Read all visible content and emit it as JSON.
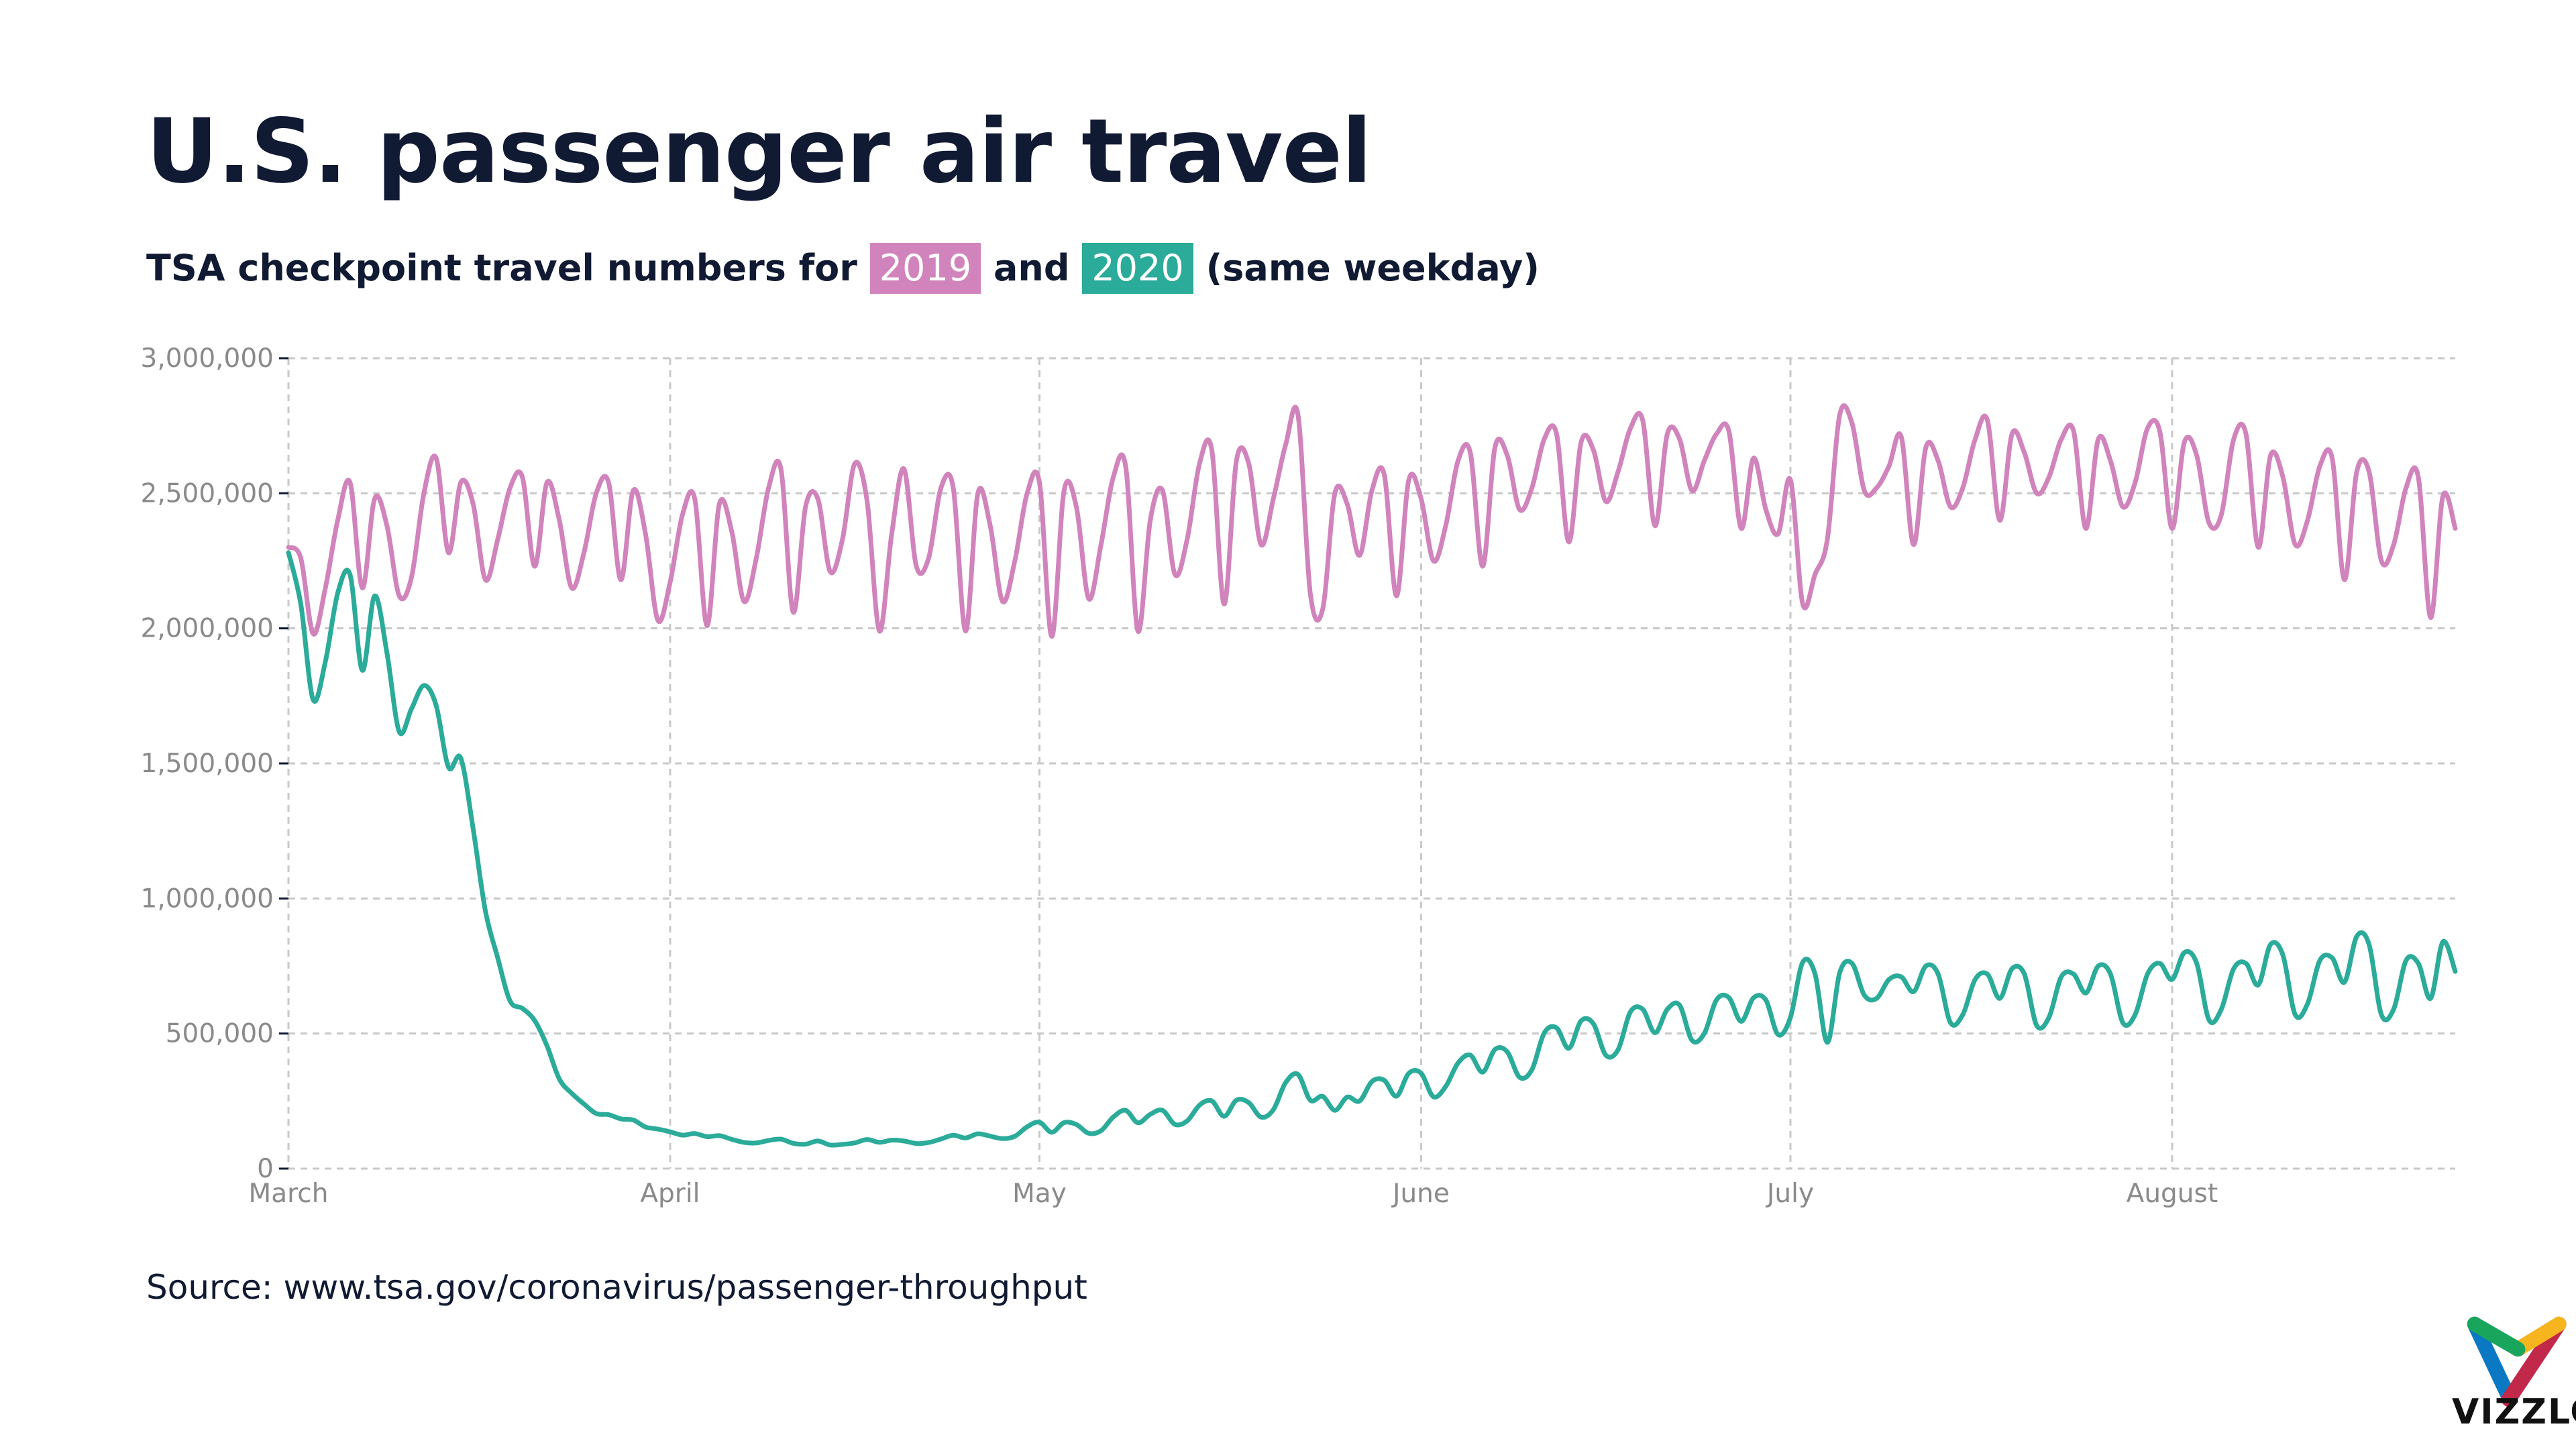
{
  "title": "U.S. passenger air travel",
  "subtitle": {
    "prefix": "TSA checkpoint travel numbers for",
    "tag_2019": "2019",
    "middle": "and",
    "tag_2020": "2020",
    "suffix": "(same weekday)"
  },
  "source": "Source: www.tsa.gov/coronavirus/passenger-throughput",
  "logo": {
    "text": "VIZZLO",
    "colors": [
      "#1aa55c",
      "#f6b51e",
      "#0a78c2",
      "#c2284a"
    ]
  },
  "colors": {
    "series_2019": "#d183bc",
    "series_2020": "#2bab99",
    "grid": "#c8c8c8",
    "title": "#111a33"
  },
  "chart_data": {
    "type": "line",
    "x_start": "2020-03-01",
    "x_end": "2020-08-24",
    "x_ticks": [
      "March",
      "April",
      "May",
      "June",
      "July",
      "August"
    ],
    "x_tick_dates": [
      "2020-03-01",
      "2020-04-01",
      "2020-05-01",
      "2020-06-01",
      "2020-07-01",
      "2020-08-01"
    ],
    "y_ticks": [
      "0",
      "500,000",
      "1,000,000",
      "1,500,000",
      "2,000,000",
      "2,500,000",
      "3,000,000"
    ],
    "ylim": [
      0,
      3000000
    ],
    "grid": true,
    "xlabel": "",
    "ylabel": "",
    "series": [
      {
        "name": "2019",
        "values": [
          2300000,
          2260000,
          1980000,
          2150000,
          2400000,
          2540000,
          2150000,
          2480000,
          2380000,
          2120000,
          2190000,
          2500000,
          2630000,
          2280000,
          2540000,
          2460000,
          2180000,
          2330000,
          2520000,
          2560000,
          2230000,
          2540000,
          2400000,
          2150000,
          2280000,
          2500000,
          2540000,
          2180000,
          2510000,
          2350000,
          2030000,
          2170000,
          2420000,
          2480000,
          2010000,
          2460000,
          2360000,
          2100000,
          2260000,
          2520000,
          2590000,
          2060000,
          2450000,
          2480000,
          2210000,
          2330000,
          2610000,
          2470000,
          1990000,
          2350000,
          2590000,
          2230000,
          2260000,
          2520000,
          2520000,
          1990000,
          2500000,
          2380000,
          2100000,
          2250000,
          2500000,
          2540000,
          1970000,
          2510000,
          2450000,
          2110000,
          2310000,
          2560000,
          2600000,
          1990000,
          2400000,
          2510000,
          2200000,
          2330000,
          2610000,
          2660000,
          2090000,
          2620000,
          2610000,
          2310000,
          2480000,
          2680000,
          2790000,
          2130000,
          2070000,
          2500000,
          2460000,
          2270000,
          2510000,
          2570000,
          2120000,
          2550000,
          2480000,
          2250000,
          2380000,
          2620000,
          2650000,
          2230000,
          2670000,
          2640000,
          2440000,
          2520000,
          2700000,
          2720000,
          2320000,
          2690000,
          2660000,
          2470000,
          2580000,
          2740000,
          2770000,
          2380000,
          2720000,
          2700000,
          2510000,
          2620000,
          2720000,
          2730000,
          2370000,
          2630000,
          2440000,
          2350000,
          2550000,
          2090000,
          2200000,
          2330000,
          2790000,
          2760000,
          2510000,
          2520000,
          2600000,
          2710000,
          2310000,
          2670000,
          2620000,
          2450000,
          2520000,
          2700000,
          2770000,
          2400000,
          2720000,
          2650000,
          2500000,
          2560000,
          2700000,
          2730000,
          2370000,
          2700000,
          2620000,
          2450000,
          2540000,
          2740000,
          2730000,
          2370000,
          2690000,
          2640000,
          2390000,
          2420000,
          2700000,
          2720000,
          2300000,
          2640000,
          2560000,
          2310000,
          2400000,
          2600000,
          2630000,
          2180000,
          2580000,
          2580000,
          2250000,
          2310000,
          2520000,
          2560000,
          2040000,
          2490000,
          2370000
        ]
      },
      {
        "name": "2020",
        "values": [
          2280522,
          2089641,
          1736393,
          1877401,
          2130015,
          2198517,
          1844811,
          2119867,
          1909363,
          1617220,
          1702686,
          1788456,
          1714372,
          1485553,
          1519192,
          1257823,
          953699,
          779631,
          620883,
          593167,
          548132,
          454516,
          331431,
          279018,
          239234,
          203858,
          199644,
          184027,
          180002,
          154080,
          146348,
          136023,
          124021,
          129763,
          118302,
          122029,
          108310,
          97130,
          94931,
          104090,
          108977,
          93645,
          90510,
          102184,
          87534,
          89567,
          95085,
          107778,
          97236,
          105382,
          102067,
          92859,
          96494,
          109467,
          123464,
          113381,
          128875,
          119854,
          110913,
          119629,
          154695,
          171563,
          134261,
          170254,
          163205,
          130601,
          140409,
          190863,
          215444,
          169580,
          200815,
          215645,
          163692,
          176667,
          234928,
          250467,
          193340,
          253190,
          244176,
          190477,
          218310,
          318449,
          348673,
          253190,
          267451,
          215645,
          264843,
          250000,
          322000,
          327000,
          268000,
          353000,
          353000,
          266000,
          304000,
          391000,
          420000,
          357000,
          441000,
          432000,
          338000,
          366000,
          502000,
          521000,
          445000,
          547000,
          536000,
          420000,
          440000,
          580000,
          590000,
          503000,
          590000,
          605000,
          475000,
          500000,
          625000,
          633000,
          545000,
          632000,
          624000,
          496000,
          560000,
          764000,
          720000,
          467000,
          725000,
          760000,
          642000,
          630000,
          700000,
          710000,
          655000,
          750000,
          720000,
          540000,
          570000,
          700000,
          720000,
          630000,
          740000,
          720000,
          530000,
          560000,
          710000,
          720000,
          650000,
          750000,
          720000,
          540000,
          570000,
          720000,
          760000,
          700000,
          800000,
          760000,
          550000,
          590000,
          740000,
          760000,
          680000,
          830000,
          790000,
          570000,
          610000,
          770000,
          780000,
          690000,
          860000,
          830000,
          570000,
          590000,
          770000,
          760000,
          630000,
          840000,
          730000
        ]
      }
    ]
  }
}
